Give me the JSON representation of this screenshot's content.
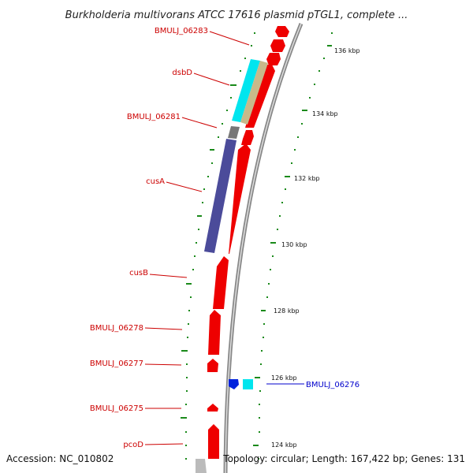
{
  "title": "Burkholderia multivorans ATCC 17616 plasmid pTGL1, complete ...",
  "footer": {
    "accession": "Accession: NC_010802",
    "topology": "Topology: circular; Length: 167,422 bp; Genes: 131"
  },
  "ticks": [
    {
      "label": "136 kbp"
    },
    {
      "label": "134 kbp"
    },
    {
      "label": "132 kbp"
    },
    {
      "label": "130 kbp"
    },
    {
      "label": "128 kbp"
    },
    {
      "label": "126 kbp"
    },
    {
      "label": "124 kbp"
    }
  ],
  "genes": [
    {
      "name": "BMULJ_06283",
      "color": "#cc0000"
    },
    {
      "name": "dsbD",
      "color": "#cc0000"
    },
    {
      "name": "BMULJ_06281",
      "color": "#cc0000"
    },
    {
      "name": "cusA",
      "color": "#cc0000"
    },
    {
      "name": "cusB",
      "color": "#cc0000"
    },
    {
      "name": "BMULJ_06278",
      "color": "#cc0000"
    },
    {
      "name": "BMULJ_06277",
      "color": "#cc0000"
    },
    {
      "name": "BMULJ_06275",
      "color": "#cc0000"
    },
    {
      "name": "pcoD",
      "color": "#cc0000"
    },
    {
      "name": "BMULJ_06276",
      "color": "#0000cc"
    }
  ],
  "colors": {
    "forward_cds": "#ee0000",
    "backbone": "#888888",
    "tick": "#1a8a1a",
    "cog_cyan": "#00e5ee",
    "cog_tan": "#c8b98a",
    "cog_purple": "#4b4b9a",
    "cog_grey": "#777777",
    "reverse_cds": "#0022dd"
  }
}
